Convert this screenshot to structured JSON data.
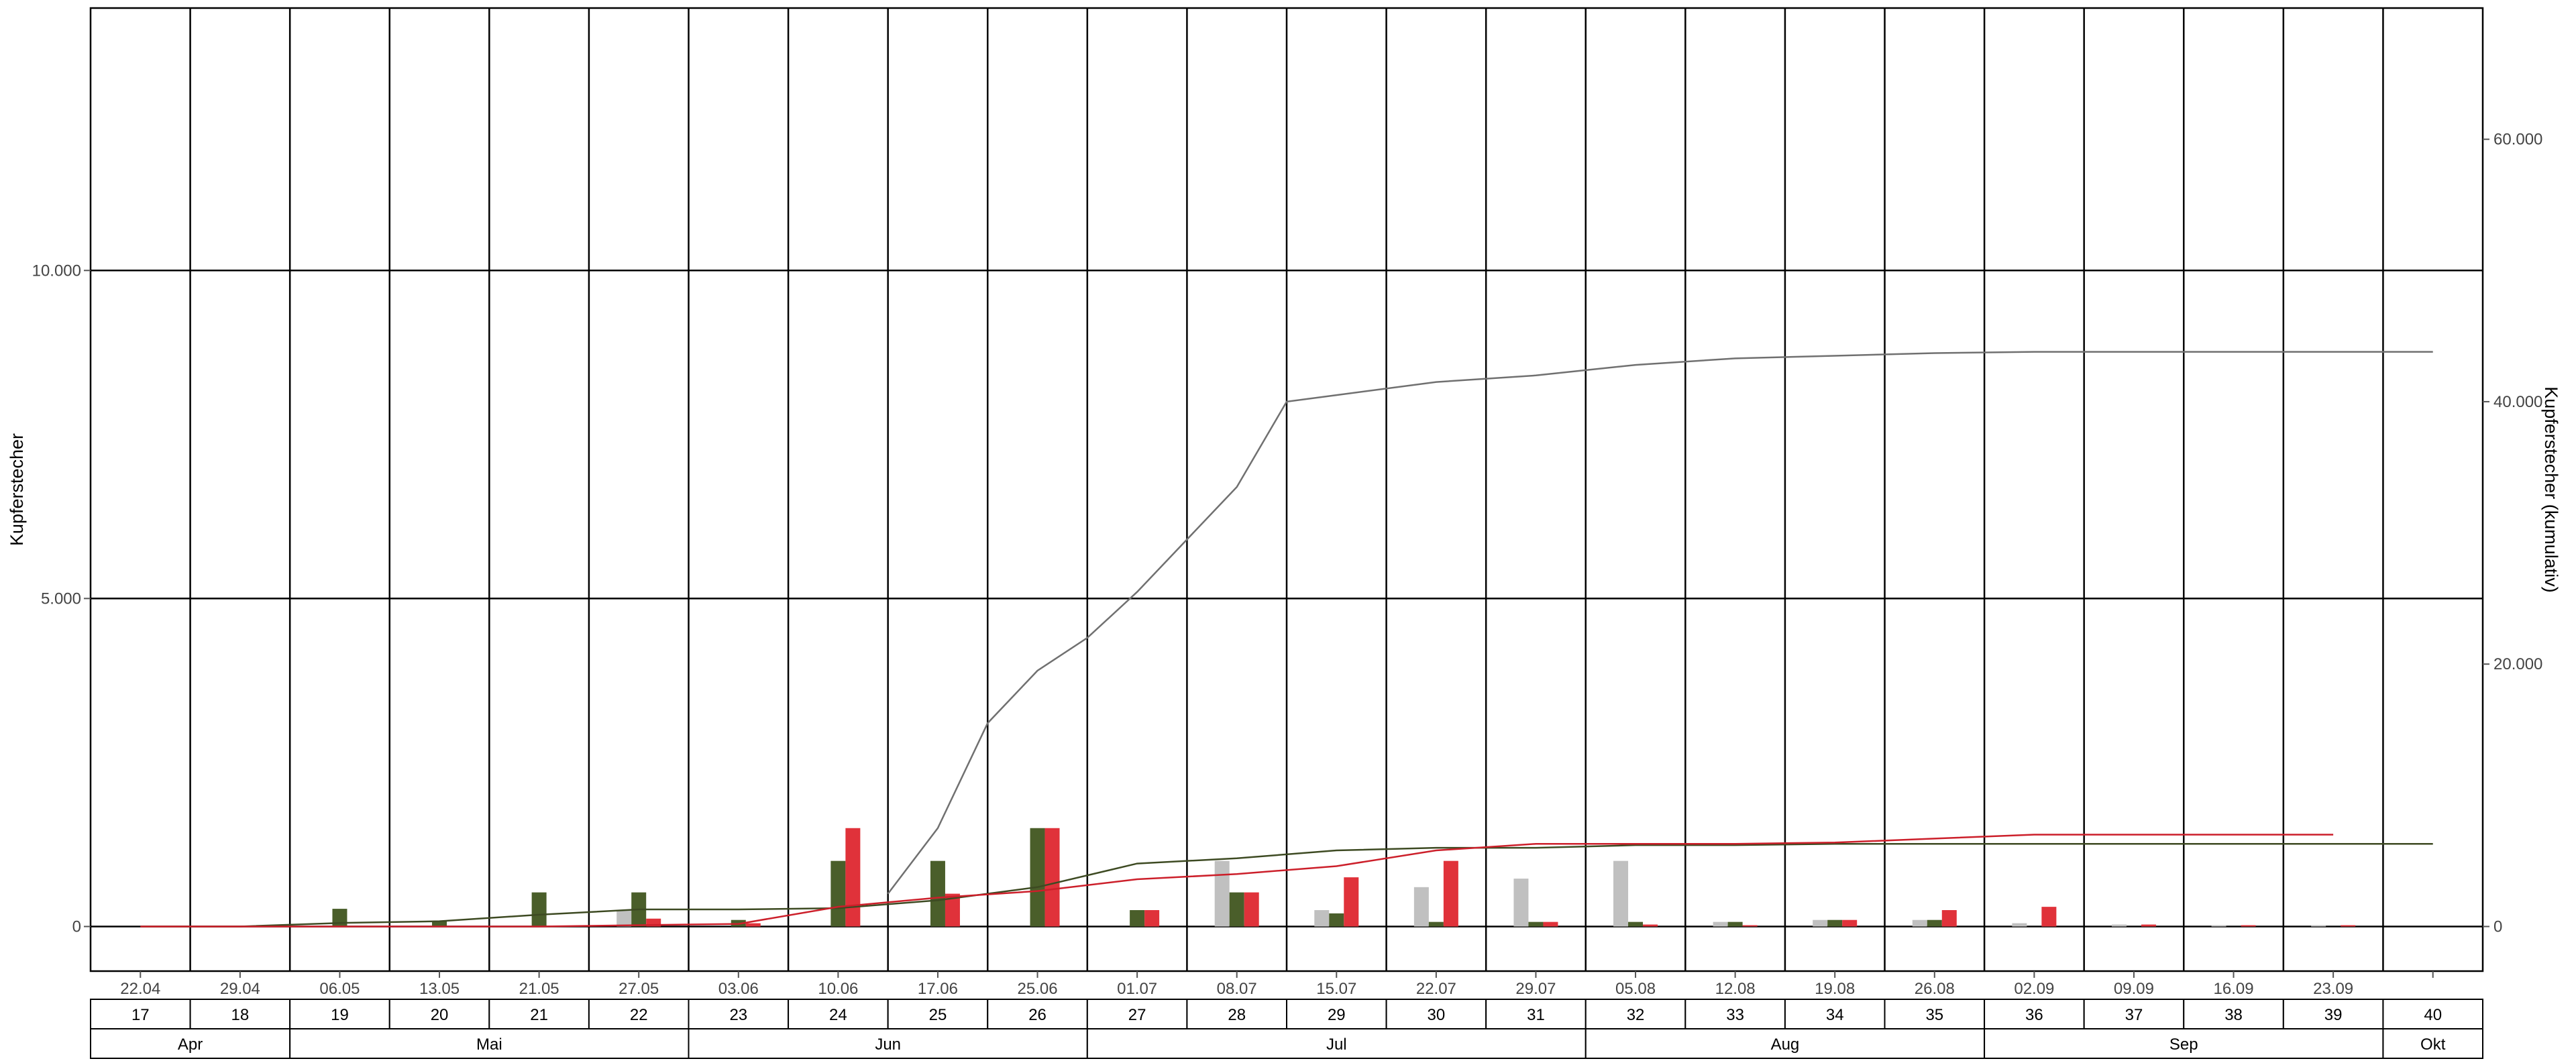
{
  "chart_data": {
    "type": "bar",
    "ylabel": "Kupferstecher",
    "ylabel_right": "Kupferstecher (kumulativ)",
    "ylim": [
      -680,
      14000
    ],
    "ylim_right": [
      -3400,
      70000
    ],
    "yticks": [
      0,
      5000,
      10000
    ],
    "yticks_labels": [
      "0",
      "5.000",
      "10.000"
    ],
    "yticks_right": [
      0,
      20000,
      40000,
      60000
    ],
    "yticks_right_labels": [
      "0",
      "20.000",
      "40.000",
      "60.000"
    ],
    "grid": true,
    "dates": [
      "22.04",
      "29.04",
      "06.05",
      "13.05",
      "21.05",
      "27.05",
      "03.06",
      "10.06",
      "17.06",
      "25.06",
      "01.07",
      "08.07",
      "15.07",
      "22.07",
      "29.07",
      "05.08",
      "12.08",
      "19.08",
      "26.08",
      "02.09",
      "09.09",
      "16.09",
      "23.09",
      ""
    ],
    "weeks": [
      "17",
      "18",
      "19",
      "20",
      "21",
      "22",
      "23",
      "24",
      "25",
      "26",
      "27",
      "28",
      "29",
      "30",
      "31",
      "32",
      "33",
      "34",
      "35",
      "36",
      "37",
      "38",
      "39",
      "40"
    ],
    "months": [
      {
        "label": "Apr",
        "span": 2
      },
      {
        "label": "Mai",
        "span": 4
      },
      {
        "label": "Jun",
        "span": 4
      },
      {
        "label": "Jul",
        "span": 5
      },
      {
        "label": "Aug",
        "span": 4
      },
      {
        "label": "Sep",
        "span": 4
      },
      {
        "label": "Okt",
        "span": 1
      }
    ],
    "colors": {
      "gray": "#c0c0c0",
      "green": "#4a5e2a",
      "red": "#e0323a",
      "gray_line": "#707070",
      "green_line": "#3d4a22",
      "red_line": "#cc1f2a"
    },
    "series": [
      {
        "values": [
          0,
          0,
          0,
          0,
          0,
          250,
          0,
          0,
          0,
          0,
          0,
          1000,
          250,
          600,
          730,
          1000,
          70,
          100,
          100,
          50,
          30,
          20,
          20,
          0
        ]
      },
      {
        "values": [
          0,
          0,
          270,
          80,
          520,
          520,
          100,
          1000,
          1000,
          1500,
          250,
          520,
          200,
          70,
          70,
          70,
          70,
          100,
          100,
          0,
          0,
          0,
          0,
          0
        ]
      },
      {
        "values": [
          0,
          0,
          0,
          0,
          0,
          120,
          50,
          1500,
          500,
          1500,
          250,
          520,
          750,
          1000,
          70,
          30,
          20,
          100,
          250,
          300,
          30,
          20,
          20,
          0
        ]
      }
    ],
    "cumulative_series": [
      {
        "x": [
          7.5,
          8.0,
          8.5,
          9.0,
          9.5,
          10.0,
          10.5,
          11.0,
          11.5,
          12.0,
          13.0,
          14.0,
          15.0,
          16.0,
          17.0,
          18.0,
          19.0,
          20.0,
          21.0,
          22.0,
          23.0
        ],
        "values": [
          2500,
          7500,
          15500,
          19500,
          22000,
          25500,
          29500,
          33500,
          40000,
          40500,
          41500,
          42000,
          42800,
          43300,
          43500,
          43700,
          43800,
          43800,
          43800,
          43800,
          43800
        ]
      },
      {
        "x": [
          0,
          1,
          2,
          3,
          4,
          5,
          6,
          7,
          8,
          9,
          10,
          11,
          12,
          13,
          14,
          15,
          16,
          17,
          18,
          19,
          20,
          21,
          22,
          23
        ],
        "values": [
          0,
          0,
          270,
          400,
          900,
          1300,
          1300,
          1400,
          2000,
          3000,
          4800,
          5200,
          5800,
          6000,
          6000,
          6200,
          6200,
          6300,
          6300,
          6300,
          6300,
          6300,
          6300,
          6300
        ]
      },
      {
        "x": [
          0,
          1,
          2,
          3,
          4,
          5,
          6,
          7,
          8,
          9,
          10,
          11,
          12,
          13,
          14,
          15,
          16,
          17,
          18,
          19,
          20,
          21,
          22
        ],
        "values": [
          0,
          0,
          0,
          0,
          0,
          100,
          200,
          1500,
          2200,
          2700,
          3600,
          4000,
          4600,
          5800,
          6300,
          6300,
          6300,
          6400,
          6700,
          7000,
          7000,
          7000,
          7000
        ]
      }
    ]
  }
}
